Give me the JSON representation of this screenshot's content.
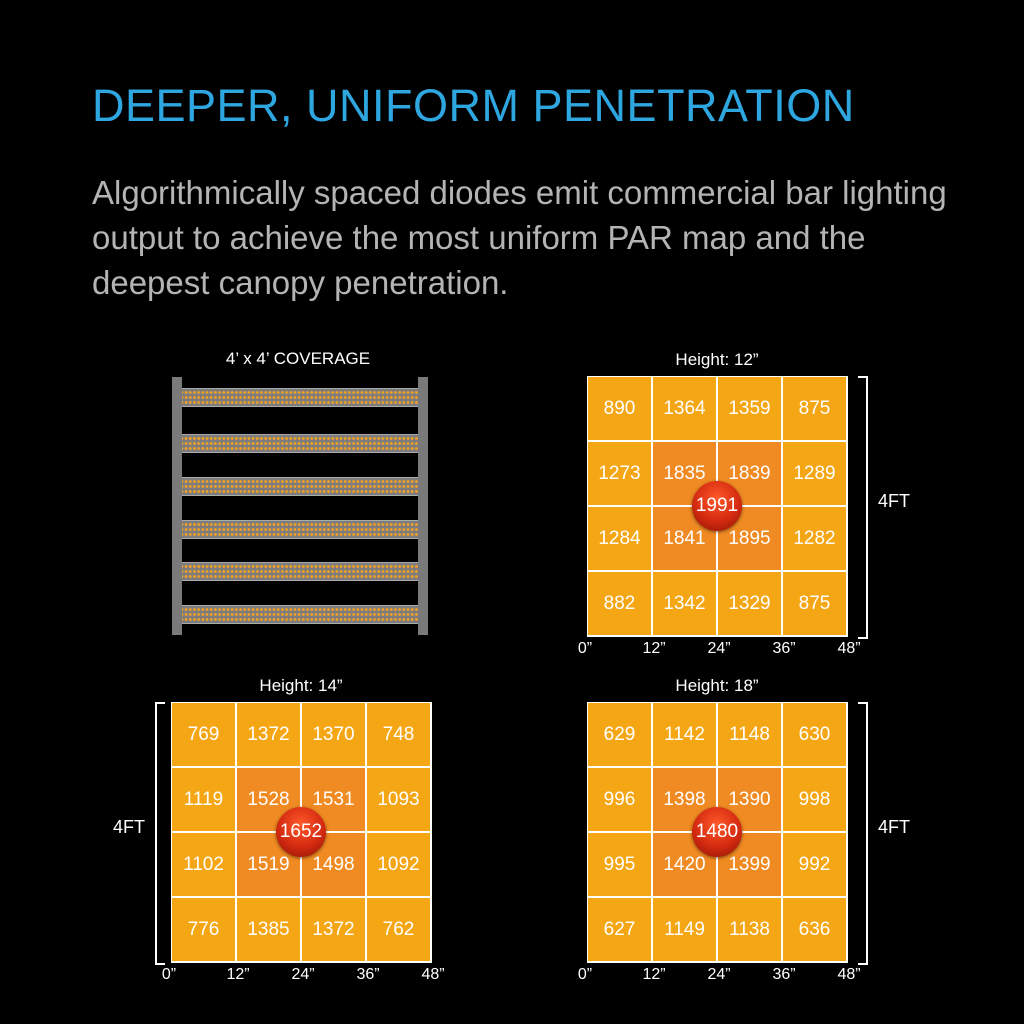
{
  "header": {
    "title": "DEEPER, UNIFORM PENETRATION",
    "description": "Algorithmically spaced diodes emit commercial bar lighting output to achieve the most uniform PAR map and the deepest canopy penetration."
  },
  "fixture": {
    "label": "4’ x 4’ COVERAGE",
    "bar_count": 6
  },
  "colors": {
    "title": "#2ea6e0",
    "outer_cell": "#f5a614",
    "inner_cell": "#f08a22",
    "peak": "#d42a10"
  },
  "chart_data": [
    {
      "type": "heatmap",
      "title": "Height: 12”",
      "x_ticks": [
        "0”",
        "12”",
        "24”",
        "36”",
        "48”"
      ],
      "side_label": "4FT",
      "values": [
        [
          890,
          1364,
          1359,
          875
        ],
        [
          1273,
          1835,
          1839,
          1289
        ],
        [
          1284,
          1841,
          1895,
          1282
        ],
        [
          882,
          1342,
          1329,
          875
        ]
      ],
      "peak": "1991"
    },
    {
      "type": "heatmap",
      "title": "Height: 14”",
      "x_ticks": [
        "0”",
        "12”",
        "24”",
        "36”",
        "48”"
      ],
      "side_label": "4FT",
      "values": [
        [
          769,
          1372,
          1370,
          748
        ],
        [
          1119,
          1528,
          1531,
          1093
        ],
        [
          1102,
          1519,
          1498,
          1092
        ],
        [
          776,
          1385,
          1372,
          762
        ]
      ],
      "peak": "1652"
    },
    {
      "type": "heatmap",
      "title": "Height: 18”",
      "x_ticks": [
        "0”",
        "12”",
        "24”",
        "36”",
        "48”"
      ],
      "side_label": "4FT",
      "values": [
        [
          629,
          1142,
          1148,
          630
        ],
        [
          996,
          1398,
          1390,
          998
        ],
        [
          995,
          1420,
          1399,
          992
        ],
        [
          627,
          1149,
          1138,
          636
        ]
      ],
      "peak": "1480"
    }
  ]
}
